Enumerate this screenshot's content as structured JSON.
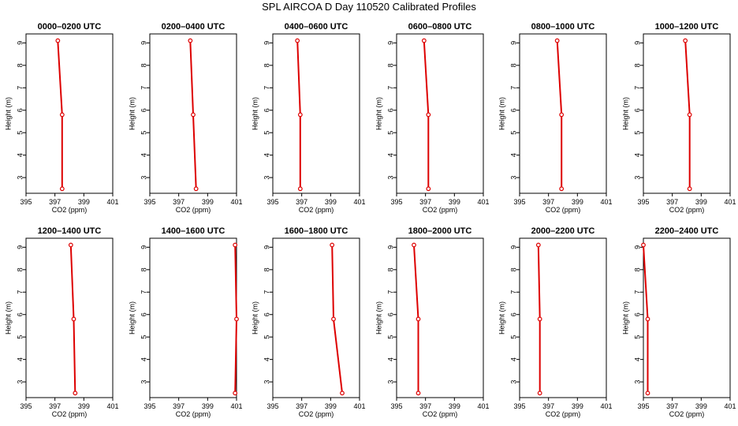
{
  "title": "SPL AIRCOA D  Day 110520  Calibrated Profiles",
  "chart_data": [
    {
      "type": "line",
      "title": "0000–0200 UTC",
      "xlabel": "CO2 (ppm)",
      "ylabel": "Height (m)",
      "xlim": [
        395,
        401
      ],
      "ylim": [
        2.3,
        9.4
      ],
      "xticks": [
        395,
        397,
        399,
        401
      ],
      "yticks": [
        3,
        4,
        5,
        6,
        7,
        8,
        9
      ],
      "grid": false,
      "series": [
        {
          "x": [
            397.2,
            397.5,
            397.5
          ],
          "y": [
            9.1,
            5.8,
            2.5
          ],
          "color": "#dd0000"
        }
      ]
    },
    {
      "type": "line",
      "title": "0200–0400 UTC",
      "xlabel": "CO2 (ppm)",
      "ylabel": "Height (m)",
      "xlim": [
        395,
        401
      ],
      "ylim": [
        2.3,
        9.4
      ],
      "xticks": [
        395,
        397,
        399,
        401
      ],
      "yticks": [
        3,
        4,
        5,
        6,
        7,
        8,
        9
      ],
      "grid": false,
      "series": [
        {
          "x": [
            397.8,
            398.0,
            398.2
          ],
          "y": [
            9.1,
            5.8,
            2.5
          ],
          "color": "#dd0000"
        }
      ]
    },
    {
      "type": "line",
      "title": "0400–0600 UTC",
      "xlabel": "CO2 (ppm)",
      "ylabel": "Height (m)",
      "xlim": [
        395,
        401
      ],
      "ylim": [
        2.3,
        9.4
      ],
      "xticks": [
        395,
        397,
        399,
        401
      ],
      "yticks": [
        3,
        4,
        5,
        6,
        7,
        8,
        9
      ],
      "grid": false,
      "series": [
        {
          "x": [
            396.7,
            396.9,
            396.9
          ],
          "y": [
            9.1,
            5.8,
            2.5
          ],
          "color": "#dd0000"
        }
      ]
    },
    {
      "type": "line",
      "title": "0600–0800 UTC",
      "xlabel": "CO2 (ppm)",
      "ylabel": "Height (m)",
      "xlim": [
        395,
        401
      ],
      "ylim": [
        2.3,
        9.4
      ],
      "xticks": [
        395,
        397,
        399,
        401
      ],
      "yticks": [
        3,
        4,
        5,
        6,
        7,
        8,
        9
      ],
      "grid": false,
      "series": [
        {
          "x": [
            396.9,
            397.2,
            397.2
          ],
          "y": [
            9.1,
            5.8,
            2.5
          ],
          "color": "#dd0000"
        }
      ]
    },
    {
      "type": "line",
      "title": "0800–1000 UTC",
      "xlabel": "CO2 (ppm)",
      "ylabel": "Height (m)",
      "xlim": [
        395,
        401
      ],
      "ylim": [
        2.3,
        9.4
      ],
      "xticks": [
        395,
        397,
        399,
        401
      ],
      "yticks": [
        3,
        4,
        5,
        6,
        7,
        8,
        9
      ],
      "grid": false,
      "series": [
        {
          "x": [
            397.6,
            397.9,
            397.9
          ],
          "y": [
            9.1,
            5.8,
            2.5
          ],
          "color": "#dd0000"
        }
      ]
    },
    {
      "type": "line",
      "title": "1000–1200 UTC",
      "xlabel": "CO2 (ppm)",
      "ylabel": "Height (m)",
      "xlim": [
        395,
        401
      ],
      "ylim": [
        2.3,
        9.4
      ],
      "xticks": [
        395,
        397,
        399,
        401
      ],
      "yticks": [
        3,
        4,
        5,
        6,
        7,
        8,
        9
      ],
      "grid": false,
      "series": [
        {
          "x": [
            397.9,
            398.2,
            398.2
          ],
          "y": [
            9.1,
            5.8,
            2.5
          ],
          "color": "#dd0000"
        }
      ]
    },
    {
      "type": "line",
      "title": "1200–1400 UTC",
      "xlabel": "CO2 (ppm)",
      "ylabel": "Height (m)",
      "xlim": [
        395,
        401
      ],
      "ylim": [
        2.3,
        9.4
      ],
      "xticks": [
        395,
        397,
        399,
        401
      ],
      "yticks": [
        3,
        4,
        5,
        6,
        7,
        8,
        9
      ],
      "grid": false,
      "series": [
        {
          "x": [
            398.1,
            398.3,
            398.4
          ],
          "y": [
            9.1,
            5.8,
            2.5
          ],
          "color": "#dd0000"
        }
      ]
    },
    {
      "type": "line",
      "title": "1400–1600 UTC",
      "xlabel": "CO2 (ppm)",
      "ylabel": "Height (m)",
      "xlim": [
        395,
        401
      ],
      "ylim": [
        2.3,
        9.4
      ],
      "xticks": [
        395,
        397,
        399,
        401
      ],
      "yticks": [
        3,
        4,
        5,
        6,
        7,
        8,
        9
      ],
      "grid": false,
      "series": [
        {
          "x": [
            400.9,
            401.0,
            400.9
          ],
          "y": [
            9.1,
            5.8,
            2.5
          ],
          "color": "#dd0000"
        }
      ]
    },
    {
      "type": "line",
      "title": "1600–1800 UTC",
      "xlabel": "CO2 (ppm)",
      "ylabel": "Height (m)",
      "xlim": [
        395,
        401
      ],
      "ylim": [
        2.3,
        9.4
      ],
      "xticks": [
        395,
        397,
        399,
        401
      ],
      "yticks": [
        3,
        4,
        5,
        6,
        7,
        8,
        9
      ],
      "grid": false,
      "series": [
        {
          "x": [
            399.1,
            399.2,
            399.8
          ],
          "y": [
            9.1,
            5.8,
            2.5
          ],
          "color": "#dd0000"
        }
      ]
    },
    {
      "type": "line",
      "title": "1800–2000 UTC",
      "xlabel": "CO2 (ppm)",
      "ylabel": "Height (m)",
      "xlim": [
        395,
        401
      ],
      "ylim": [
        2.3,
        9.4
      ],
      "xticks": [
        395,
        397,
        399,
        401
      ],
      "yticks": [
        3,
        4,
        5,
        6,
        7,
        8,
        9
      ],
      "grid": false,
      "series": [
        {
          "x": [
            396.2,
            396.5,
            396.5
          ],
          "y": [
            9.1,
            5.8,
            2.5
          ],
          "color": "#dd0000"
        }
      ]
    },
    {
      "type": "line",
      "title": "2000–2200 UTC",
      "xlabel": "CO2 (ppm)",
      "ylabel": "Height (m)",
      "xlim": [
        395,
        401
      ],
      "ylim": [
        2.3,
        9.4
      ],
      "xticks": [
        395,
        397,
        399,
        401
      ],
      "yticks": [
        3,
        4,
        5,
        6,
        7,
        8,
        9
      ],
      "grid": false,
      "series": [
        {
          "x": [
            396.3,
            396.4,
            396.4
          ],
          "y": [
            9.1,
            5.8,
            2.5
          ],
          "color": "#dd0000"
        }
      ]
    },
    {
      "type": "line",
      "title": "2200–2400 UTC",
      "xlabel": "CO2 (ppm)",
      "ylabel": "Height (m)",
      "xlim": [
        395,
        401
      ],
      "ylim": [
        2.3,
        9.4
      ],
      "xticks": [
        395,
        397,
        399,
        401
      ],
      "yticks": [
        3,
        4,
        5,
        6,
        7,
        8,
        9
      ],
      "grid": false,
      "series": [
        {
          "x": [
            395.0,
            395.3,
            395.3
          ],
          "y": [
            9.1,
            5.8,
            2.5
          ],
          "color": "#dd0000"
        }
      ]
    }
  ]
}
